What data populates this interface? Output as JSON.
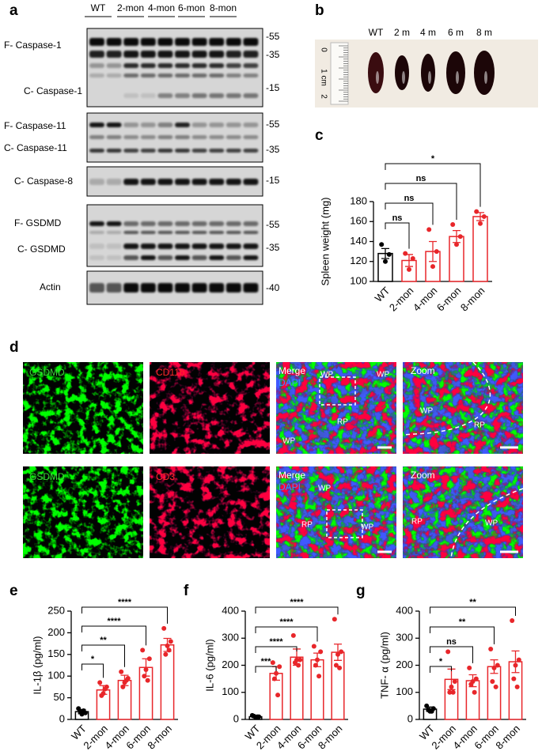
{
  "panels": {
    "letters": [
      "a",
      "b",
      "c",
      "d",
      "e",
      "f",
      "g"
    ]
  },
  "panel_a": {
    "lanes": [
      "WT",
      "2-mon",
      "4-mon",
      "6-mon",
      "8-mon"
    ],
    "proteins": [
      "F- Caspase-1",
      "C- Caspase-1",
      "F- Caspase-11",
      "C- Caspase-11",
      "C- Caspase-8",
      "F- GSDMD",
      "C- GSDMD",
      "Actin"
    ],
    "markers": [
      "-55",
      "-35",
      "-15",
      "-55",
      "-35",
      "-15",
      "-55",
      "-35",
      "-40"
    ]
  },
  "panel_b": {
    "groups": [
      "WT",
      "2 m",
      "4 m",
      "6 m",
      "8 m"
    ],
    "ruler": [
      "0",
      "1 cm",
      "2"
    ]
  },
  "panel_d": {
    "rows": [
      {
        "stain1": "GSDMD",
        "stain2": "CD11b",
        "merge": "Merge",
        "dapi": "DAPI",
        "merge_regions": [
          "WP",
          "WP",
          "RP",
          "WP"
        ],
        "zoom": "Zoom",
        "zoom_regions": [
          "WP",
          "RP"
        ]
      },
      {
        "stain1": "GSDMD",
        "stain2": "CD3",
        "merge": "Merge",
        "dapi": "DAPI",
        "merge_regions": [
          "WP",
          "RP",
          "WP"
        ],
        "zoom": "Zoom",
        "zoom_regions": [
          "RP",
          "WP"
        ]
      }
    ]
  },
  "chart_data": [
    {
      "type": "bar",
      "categories": [
        "WT",
        "2-mon",
        "4-mon",
        "6-mon",
        "8-mon"
      ],
      "values": [
        128,
        121,
        130,
        145,
        165
      ],
      "errors": [
        5,
        6,
        10,
        6,
        4
      ],
      "points": [
        [
          137,
          127,
          120
        ],
        [
          128,
          123,
          112
        ],
        [
          152,
          130,
          115
        ],
        [
          157,
          145,
          137
        ],
        [
          170,
          165,
          158
        ]
      ],
      "colors": [
        "#000000",
        "#e8262a",
        "#e8262a",
        "#e8262a",
        "#e8262a"
      ],
      "significance": [
        null,
        "ns",
        "ns",
        "ns",
        "*"
      ],
      "ylabel": "Spleen weight (mg)",
      "ylim": [
        100,
        180
      ],
      "yticks": [
        100,
        120,
        140,
        160,
        180
      ]
    },
    {
      "type": "bar",
      "categories": [
        "WT",
        "2-mon",
        "4-mon",
        "6-mon",
        "8-mon"
      ],
      "values": [
        18,
        68,
        90,
        120,
        172
      ],
      "errors": [
        5,
        10,
        12,
        20,
        15
      ],
      "points": [
        [
          25,
          15,
          12,
          18,
          20
        ],
        [
          85,
          75,
          60,
          55,
          70
        ],
        [
          110,
          95,
          85,
          75,
          90
        ],
        [
          160,
          140,
          115,
          100,
          90
        ],
        [
          210,
          180,
          170,
          150,
          160
        ]
      ],
      "colors": [
        "#000000",
        "#e8262a",
        "#e8262a",
        "#e8262a",
        "#e8262a"
      ],
      "significance": [
        null,
        "*",
        "**",
        "****",
        "****"
      ],
      "ylabel": "IL-1β (pg/ml)",
      "ylim": [
        0,
        250
      ],
      "yticks": [
        0,
        50,
        100,
        150,
        200,
        250
      ]
    },
    {
      "type": "bar",
      "categories": [
        "WT",
        "2-mon",
        "4-mon",
        "6-mon",
        "8-mon"
      ],
      "values": [
        10,
        170,
        230,
        220,
        248
      ],
      "errors": [
        3,
        25,
        30,
        25,
        30
      ],
      "points": [
        [
          15,
          10,
          8,
          12,
          10
        ],
        [
          210,
          195,
          170,
          150,
          90
        ],
        [
          310,
          220,
          220,
          210,
          200
        ],
        [
          270,
          250,
          220,
          200,
          160
        ],
        [
          370,
          250,
          240,
          200,
          190
        ]
      ],
      "colors": [
        "#000000",
        "#e8262a",
        "#e8262a",
        "#e8262a",
        "#e8262a"
      ],
      "significance": [
        null,
        "***",
        "****",
        "****",
        "****"
      ],
      "ylabel": "IL-6 (pg/ml)",
      "ylim": [
        0,
        400
      ],
      "yticks": [
        0,
        100,
        200,
        300,
        400
      ]
    },
    {
      "type": "bar",
      "categories": [
        "WT",
        "2-mon",
        "4-mon",
        "6-mon",
        "8-mon"
      ],
      "values": [
        38,
        148,
        143,
        195,
        213
      ],
      "errors": [
        8,
        38,
        22,
        25,
        40
      ],
      "points": [
        [
          50,
          40,
          30,
          35,
          30
        ],
        [
          250,
          140,
          120,
          100,
          100
        ],
        [
          190,
          150,
          140,
          130,
          100
        ],
        [
          260,
          200,
          190,
          140,
          120
        ],
        [
          365,
          220,
          200,
          150,
          120
        ]
      ],
      "colors": [
        "#000000",
        "#e8262a",
        "#e8262a",
        "#e8262a",
        "#e8262a"
      ],
      "significance": [
        null,
        "*",
        "ns",
        "**",
        "**"
      ],
      "ylabel": "TNF- α (pg/ml)",
      "ylim": [
        0,
        400
      ],
      "yticks": [
        0,
        100,
        200,
        300,
        400
      ]
    }
  ]
}
